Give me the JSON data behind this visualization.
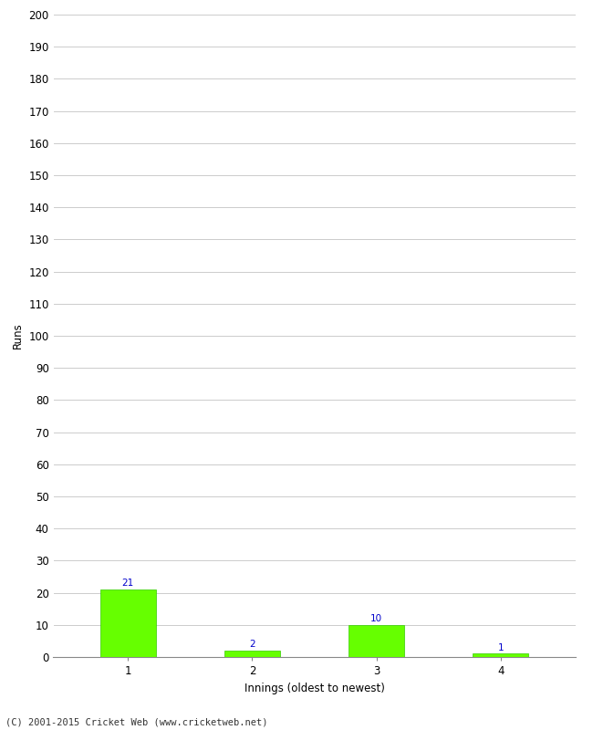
{
  "categories": [
    "1",
    "2",
    "3",
    "4"
  ],
  "values": [
    21,
    2,
    10,
    1
  ],
  "bar_color": "#66ff00",
  "bar_edge_color": "#33cc00",
  "value_color": "#0000cc",
  "xlabel": "Innings (oldest to newest)",
  "ylabel": "Runs",
  "ylim": [
    0,
    200
  ],
  "yticks": [
    0,
    10,
    20,
    30,
    40,
    50,
    60,
    70,
    80,
    90,
    100,
    110,
    120,
    130,
    140,
    150,
    160,
    170,
    180,
    190,
    200
  ],
  "background_color": "#ffffff",
  "grid_color": "#cccccc",
  "footer": "(C) 2001-2015 Cricket Web (www.cricketweb.net)",
  "value_fontsize": 7.5,
  "label_fontsize": 8.5,
  "tick_fontsize": 8.5,
  "footer_fontsize": 7.5
}
